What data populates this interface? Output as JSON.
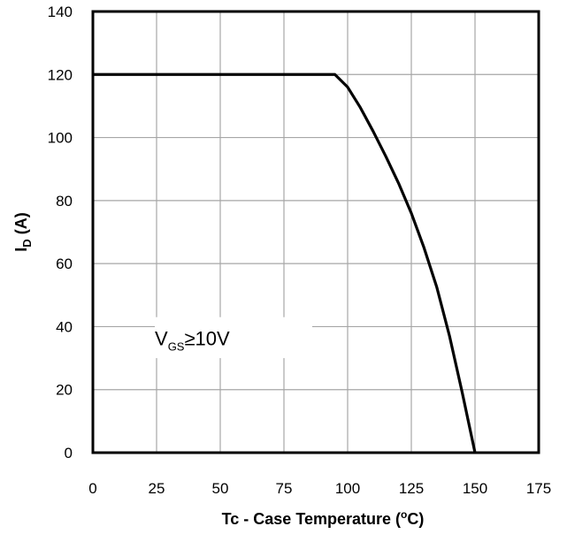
{
  "chart_data": {
    "type": "line",
    "x_ticks": [
      "0",
      "25",
      "50",
      "75",
      "100",
      "125",
      "150",
      "175"
    ],
    "y_ticks": [
      "0",
      "20",
      "40",
      "60",
      "80",
      "100",
      "120",
      "140"
    ],
    "xlim": [
      0,
      175
    ],
    "ylim": [
      0,
      140
    ],
    "grid": true,
    "xlabel": "Tc - Case Temperature (°C)",
    "ylabel": "ID (A)",
    "ylabel_parts": {
      "main": "I",
      "sub": "D",
      "rest": " (A)"
    },
    "xlabel_parts": {
      "pre": "Tc - Case Temperature (",
      "sup": "o",
      "post": "C)"
    },
    "annotation": {
      "main": "V",
      "sub": "GS",
      "rest": "≥10V"
    },
    "series": [
      {
        "x": [
          0,
          95,
          100,
          105,
          110,
          115,
          120,
          125,
          130,
          135,
          140,
          145,
          150
        ],
        "y": [
          120,
          120,
          116,
          109.5,
          102,
          94,
          85.5,
          76,
          65,
          52.5,
          37,
          19,
          0
        ]
      }
    ]
  }
}
